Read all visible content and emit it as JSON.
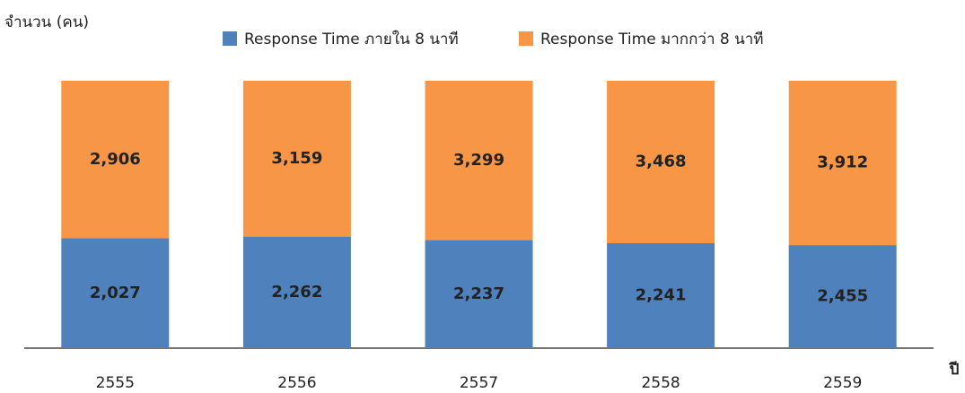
{
  "chart_data": {
    "type": "bar",
    "stacking": "percent",
    "y_label": "จำนวน (คน)",
    "x_label": "ปี",
    "categories": [
      "2555",
      "2556",
      "2557",
      "2558",
      "2559"
    ],
    "series": [
      {
        "name": "Response Time ภายใน 8 นาที",
        "color": "#4f81bd",
        "values": [
          2027,
          2262,
          2237,
          2241,
          2455
        ],
        "value_labels": [
          "2,027",
          "2,262",
          "2,237",
          "2,241",
          "2,455"
        ]
      },
      {
        "name": "Response Time มากกว่า 8 นาที",
        "color": "#f79646",
        "values": [
          2906,
          3159,
          3299,
          3468,
          3912
        ],
        "value_labels": [
          "2,906",
          "3,159",
          "3,299",
          "3,468",
          "3,912"
        ]
      }
    ],
    "legend": "top"
  }
}
